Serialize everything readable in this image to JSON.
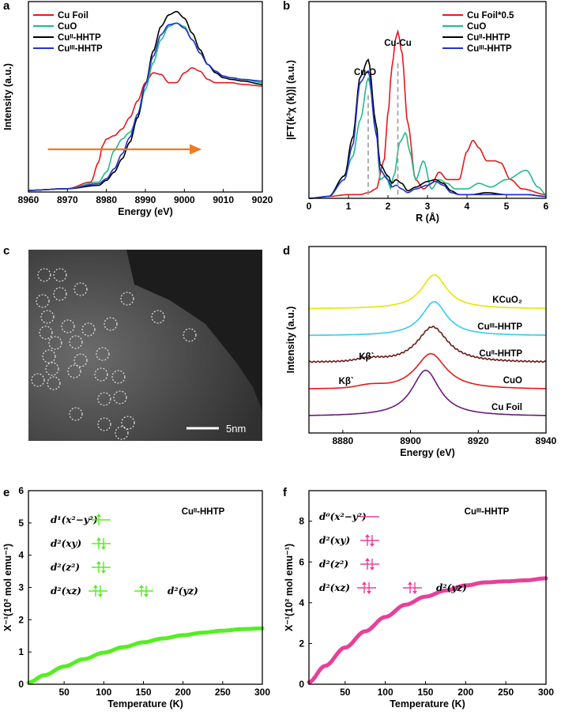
{
  "panels": {
    "a": {
      "label": "a"
    },
    "b": {
      "label": "b"
    },
    "c": {
      "label": "c"
    },
    "d": {
      "label": "d"
    },
    "e": {
      "label": "e"
    },
    "f": {
      "label": "f"
    }
  },
  "chart_data": [
    {
      "id": "a",
      "type": "line",
      "xlabel": "Energy (eV)",
      "ylabel": "Intensity (a.u.)",
      "xlim": [
        8960,
        9020
      ],
      "ylim": [
        0,
        1.15
      ],
      "xticks": [
        "8960",
        "8970",
        "8980",
        "8990",
        "9000",
        "9010",
        "9020"
      ],
      "legend": [
        "Cu Foil",
        "CuO",
        "Cuᴵᴵ-HHTP",
        "Cuᴵᴵᴵ-HHTP"
      ],
      "annotation": "arrow 8965 → 9004 eV",
      "series": [
        {
          "name": "Cu Foil",
          "color": "#e41a1c",
          "x": [
            8960,
            8970,
            8976,
            8978,
            8979,
            8980,
            8982,
            8984,
            8986,
            8988,
            8990,
            8992,
            8994,
            8996,
            8998,
            9000,
            9002,
            9004,
            9006,
            9008,
            9010,
            9012,
            9015,
            9020
          ],
          "y": [
            0.01,
            0.02,
            0.06,
            0.18,
            0.28,
            0.32,
            0.34,
            0.38,
            0.45,
            0.55,
            0.66,
            0.72,
            0.71,
            0.66,
            0.66,
            0.72,
            0.75,
            0.73,
            0.68,
            0.66,
            0.66,
            0.66,
            0.65,
            0.64
          ]
        },
        {
          "name": "CuO",
          "color": "#22bb88",
          "x": [
            8960,
            8970,
            8978,
            8980,
            8982,
            8984,
            8986,
            8988,
            8990,
            8992,
            8994,
            8996,
            8998,
            9000,
            9002,
            9004,
            9006,
            9008,
            9010,
            9012,
            9015,
            9020
          ],
          "y": [
            0.01,
            0.02,
            0.06,
            0.12,
            0.25,
            0.32,
            0.36,
            0.45,
            0.62,
            0.78,
            0.92,
            1.0,
            1.02,
            1.0,
            0.92,
            0.84,
            0.77,
            0.73,
            0.7,
            0.69,
            0.68,
            0.66
          ]
        },
        {
          "name": "Cuᴵᴵ-HHTP",
          "color": "#000000",
          "x": [
            8960,
            8970,
            8978,
            8980,
            8982,
            8984,
            8986,
            8988,
            8990,
            8992,
            8994,
            8996,
            8998,
            9000,
            9002,
            9004,
            9006,
            9008,
            9010,
            9012,
            9015,
            9020
          ],
          "y": [
            0.01,
            0.02,
            0.04,
            0.07,
            0.12,
            0.2,
            0.3,
            0.45,
            0.65,
            0.85,
            1.0,
            1.07,
            1.09,
            1.05,
            0.96,
            0.86,
            0.77,
            0.72,
            0.69,
            0.68,
            0.67,
            0.65
          ]
        },
        {
          "name": "Cuᴵᴵᴵ-HHTP",
          "color": "#2233cc",
          "x": [
            8960,
            8970,
            8978,
            8980,
            8982,
            8984,
            8986,
            8988,
            8990,
            8992,
            8994,
            8996,
            8998,
            9000,
            9002,
            9004,
            9006,
            9008,
            9010,
            9012,
            9015,
            9020
          ],
          "y": [
            0.01,
            0.02,
            0.05,
            0.08,
            0.14,
            0.23,
            0.33,
            0.47,
            0.65,
            0.82,
            0.95,
            1.01,
            1.02,
            0.99,
            0.92,
            0.84,
            0.77,
            0.73,
            0.7,
            0.69,
            0.68,
            0.67
          ]
        }
      ]
    },
    {
      "id": "b",
      "type": "line",
      "xlabel": "R (Å)",
      "ylabel": "|FT(k³χ (k))| (a.u.)",
      "xlim": [
        0,
        6
      ],
      "ylim": [
        0,
        1.05
      ],
      "xticks": [
        "0",
        "1",
        "2",
        "3",
        "4",
        "5",
        "6"
      ],
      "legend": [
        "Cu Foil*0.5",
        "CuO",
        "Cuᴵᴵ-HHTP",
        "Cuᴵᴵᴵ-HHTP"
      ],
      "annotations": [
        {
          "text": "Cu-O",
          "x": 1.5
        },
        {
          "text": "Cu-Cu",
          "x": 2.25
        }
      ],
      "series": [
        {
          "name": "Cu Foil*0.5",
          "color": "#e41a1c",
          "x": [
            0,
            0.5,
            1.0,
            1.3,
            1.5,
            1.7,
            1.9,
            2.0,
            2.1,
            2.2,
            2.25,
            2.35,
            2.5,
            2.7,
            2.9,
            3.1,
            3.3,
            3.5,
            3.8,
            4.0,
            4.15,
            4.3,
            4.5,
            4.7,
            4.85,
            5.1,
            5.4,
            6.0
          ],
          "y": [
            0,
            0.01,
            0.02,
            0.02,
            0.03,
            0.05,
            0.2,
            0.45,
            0.7,
            0.86,
            0.89,
            0.78,
            0.4,
            0.1,
            0.05,
            0.08,
            0.14,
            0.1,
            0.1,
            0.25,
            0.31,
            0.27,
            0.2,
            0.2,
            0.19,
            0.1,
            0.05,
            0.02
          ]
        },
        {
          "name": "CuO",
          "color": "#22bb88",
          "x": [
            0,
            0.5,
            0.9,
            1.1,
            1.3,
            1.5,
            1.7,
            1.8,
            1.95,
            2.0,
            2.05,
            2.15,
            2.3,
            2.45,
            2.55,
            2.7,
            2.9,
            3.1,
            3.3,
            3.5,
            3.7,
            4.0,
            4.3,
            4.6,
            5.0,
            5.5,
            5.8,
            6.0
          ],
          "y": [
            0,
            0.01,
            0.12,
            0.22,
            0.42,
            0.64,
            0.4,
            0.1,
            0.12,
            0.1,
            0.05,
            0.12,
            0.3,
            0.35,
            0.25,
            0.1,
            0.2,
            0.05,
            0.1,
            0.08,
            0.05,
            0.05,
            0.08,
            0.06,
            0.1,
            0.15,
            0.06,
            0.02
          ]
        },
        {
          "name": "Cuᴵᴵ-HHTP",
          "color": "#000000",
          "x": [
            0,
            0.5,
            0.9,
            1.1,
            1.3,
            1.5,
            1.7,
            1.8,
            2.0,
            2.1,
            2.2,
            2.35,
            2.5,
            2.7,
            3.0,
            3.2,
            3.4,
            3.6,
            3.8,
            4.1,
            4.5,
            5.0,
            5.5,
            6.0
          ],
          "y": [
            0,
            0.01,
            0.12,
            0.32,
            0.65,
            0.74,
            0.4,
            0.18,
            0.12,
            0.08,
            0.1,
            0.08,
            0.04,
            0.06,
            0.09,
            0.1,
            0.08,
            0.04,
            0.02,
            0.02,
            0.03,
            0.02,
            0.02,
            0.01
          ]
        },
        {
          "name": "Cuᴵᴵᴵ-HHTP",
          "color": "#2233cc",
          "x": [
            0,
            0.5,
            0.9,
            1.1,
            1.3,
            1.5,
            1.7,
            1.8,
            2.0,
            2.1,
            2.2,
            2.35,
            2.5,
            2.7,
            3.0,
            3.2,
            3.4,
            3.6,
            3.8,
            4.1,
            4.5,
            5.0,
            5.5,
            6.0
          ],
          "y": [
            0,
            0.01,
            0.1,
            0.28,
            0.62,
            0.68,
            0.35,
            0.15,
            0.1,
            0.06,
            0.07,
            0.05,
            0.03,
            0.05,
            0.07,
            0.09,
            0.07,
            0.03,
            0.02,
            0.02,
            0.02,
            0.02,
            0.02,
            0.01
          ]
        }
      ]
    },
    {
      "id": "c",
      "type": "image",
      "scalebar": "5nm"
    },
    {
      "id": "d",
      "type": "line",
      "xlabel": "Energy (eV)",
      "ylabel": "Intensity (a.u.)",
      "xlim": [
        8870,
        8940
      ],
      "xticks": [
        "8880",
        "8900",
        "8920",
        "8940"
      ],
      "peak_label": "Kβ`",
      "series": [
        {
          "name": "KCuO₂",
          "color": "#e6e600",
          "offset": 4,
          "peak": 8907,
          "width": 4.5,
          "height": 1.0
        },
        {
          "name": "Cuᴵᴵᴵ-HHTP",
          "color": "#33ccee",
          "offset": 3,
          "peak": 8907,
          "width": 4.5,
          "height": 1.0
        },
        {
          "name": "Cuᴵᴵ-HHTP",
          "color": "#6b1a1a",
          "offset": 2,
          "peak": 8906.5,
          "width": 5.5,
          "height": 1.05,
          "satellite": 8888
        },
        {
          "name": "CuO",
          "color": "#e41a1c",
          "offset": 1,
          "peak": 8906,
          "width": 5.5,
          "height": 1.05,
          "satellite": 8888
        },
        {
          "name": "Cu Foil",
          "color": "#6a1a7a",
          "offset": 0,
          "peak": 8904.5,
          "width": 5.0,
          "height": 1.35
        }
      ]
    },
    {
      "id": "e",
      "type": "scatter",
      "xlabel": "Temperature (K)",
      "ylabel": "X⁻¹(10² mol emu⁻¹)",
      "xlim": [
        5,
        300
      ],
      "ylim": [
        0,
        6
      ],
      "xticks": [
        "50",
        "100",
        "150",
        "200",
        "250",
        "300"
      ],
      "yticks": [
        "0",
        "1",
        "2",
        "3",
        "4",
        "5",
        "6"
      ],
      "label": "Cuᴵᴵ-HHTP",
      "color": "#55ee22",
      "series": [
        {
          "name": "Cuᴵᴵ-HHTP",
          "x": [
            5,
            25,
            50,
            75,
            100,
            125,
            150,
            175,
            200,
            225,
            250,
            275,
            300
          ],
          "y": [
            0.05,
            0.28,
            0.55,
            0.78,
            0.98,
            1.15,
            1.3,
            1.42,
            1.52,
            1.6,
            1.66,
            1.71,
            1.73
          ]
        }
      ],
      "orbitals": [
        {
          "name": "d¹(x²−y²)",
          "electrons": 1
        },
        {
          "name": "d²(xy)",
          "electrons": 2
        },
        {
          "name": "d²(z²)",
          "electrons": 2
        },
        {
          "name": "d²(xz)",
          "electrons": 2
        },
        {
          "name": "d²(yz)",
          "electrons": 2
        }
      ]
    },
    {
      "id": "f",
      "type": "scatter",
      "xlabel": "Temperature (K)",
      "ylabel": "X⁻¹(10² mol emu⁻¹)",
      "xlim": [
        5,
        300
      ],
      "ylim": [
        0,
        9.5
      ],
      "xticks": [
        "50",
        "100",
        "150",
        "200",
        "250",
        "300"
      ],
      "yticks": [
        "0",
        "2",
        "4",
        "6",
        "8"
      ],
      "label": "Cuᴵᴵᴵ-HHTP",
      "color": "#e8409a",
      "series": [
        {
          "name": "Cuᴵᴵᴵ-HHTP",
          "x": [
            5,
            25,
            50,
            75,
            100,
            125,
            150,
            175,
            200,
            225,
            250,
            275,
            300
          ],
          "y": [
            0.1,
            0.9,
            1.8,
            2.6,
            3.3,
            3.9,
            4.3,
            4.6,
            4.85,
            5.0,
            5.05,
            5.1,
            5.2
          ]
        }
      ],
      "orbitals": [
        {
          "name": "d⁰(x²−y²)",
          "electrons": 0
        },
        {
          "name": "d²(xy)",
          "electrons": 2
        },
        {
          "name": "d²(z²)",
          "electrons": 2
        },
        {
          "name": "d²(xz)",
          "electrons": 2
        },
        {
          "name": "d²(yz)",
          "electrons": 2
        }
      ]
    }
  ]
}
